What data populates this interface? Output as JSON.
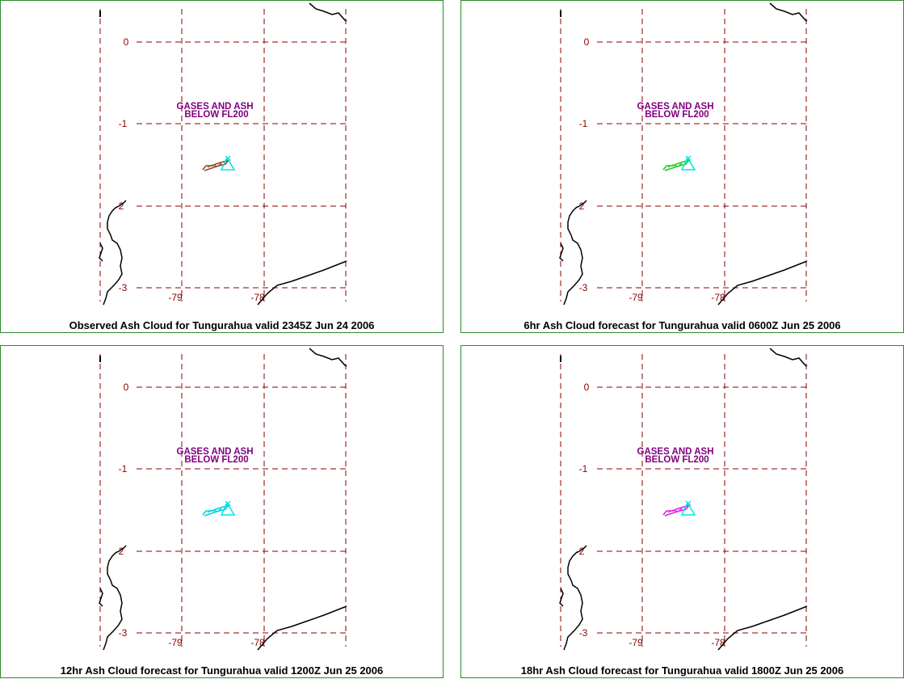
{
  "map": {
    "volcano": "Tungurahua",
    "annotation": [
      "GASES AND ASH",
      "BELOW FL200"
    ],
    "annotation_color": "#800080",
    "lat_ticks": [
      "0",
      "-1",
      "-2",
      "-3"
    ],
    "lon_ticks": [
      "-79",
      "-78"
    ],
    "grid_color": "#8b0000",
    "coast_color": "#000000",
    "volcano_color": "#00e5e5"
  },
  "panels": [
    {
      "caption": "Observed Ash Cloud for Tungurahua valid 2345Z Jun 24 2006",
      "cloud_color": "#8b4a2b"
    },
    {
      "caption": "6hr Ash Cloud forecast for Tungurahua valid 0600Z Jun 25 2006",
      "cloud_color": "#22cc22"
    },
    {
      "caption": "12hr Ash Cloud forecast for Tungurahua valid 1200Z Jun 25 2006",
      "cloud_color": "#00d0e0"
    },
    {
      "caption": "18hr Ash Cloud forecast for Tungurahua valid 1800Z Jun 25 2006",
      "cloud_color": "#e020e0"
    }
  ]
}
